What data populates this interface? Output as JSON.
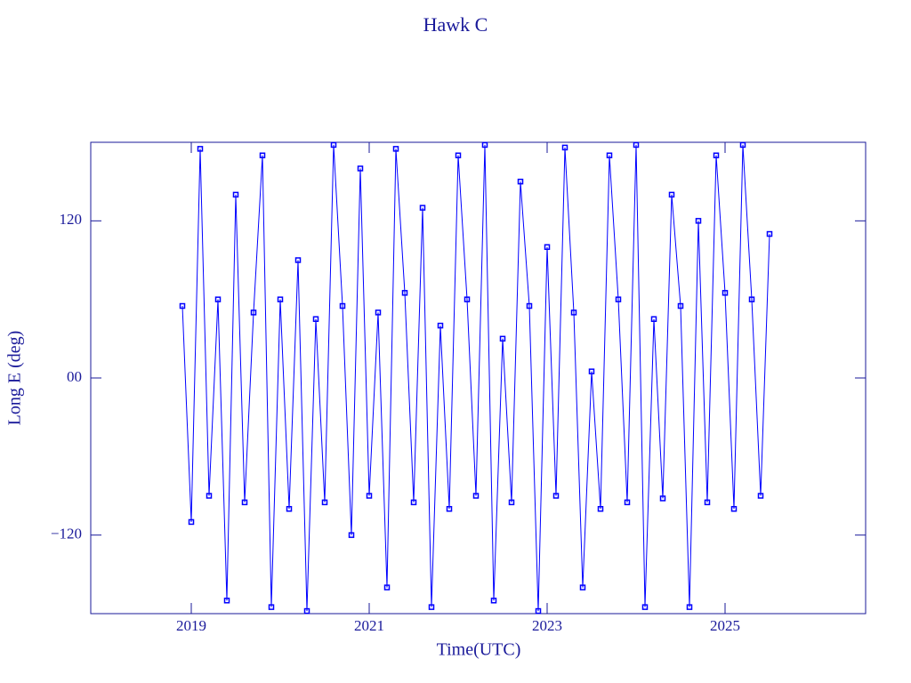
{
  "chart_data": {
    "type": "line",
    "title": "Hawk C",
    "xlabel": "Time(UTC)",
    "ylabel": "Long E (deg)",
    "x": [
      2018.9,
      2019.0,
      2019.1,
      2019.2,
      2019.3,
      2019.4,
      2019.5,
      2019.6,
      2019.7,
      2019.8,
      2019.9,
      2020.0,
      2020.1,
      2020.2,
      2020.3,
      2020.4,
      2020.5,
      2020.6,
      2020.7,
      2020.8,
      2020.9,
      2021.0,
      2021.1,
      2021.2,
      2021.3,
      2021.4,
      2021.5,
      2021.6,
      2021.7,
      2021.8,
      2021.9,
      2022.0,
      2022.1,
      2022.2,
      2022.3,
      2022.4,
      2022.5,
      2022.6,
      2022.7,
      2022.8,
      2022.9,
      2023.0,
      2023.1,
      2023.2,
      2023.3,
      2023.4,
      2023.5,
      2023.6,
      2023.7,
      2023.8,
      2023.9,
      2024.0,
      2024.1,
      2024.2,
      2024.3,
      2024.4,
      2024.5,
      2024.6,
      2024.7,
      2024.8,
      2024.9,
      2025.0,
      2025.1,
      2025.2,
      2025.3,
      2025.4,
      2025.5
    ],
    "series": [
      {
        "color": "#0000ff",
        "values": [
          55,
          -110,
          175,
          -90,
          60,
          -170,
          140,
          -95,
          50,
          170,
          -175,
          60,
          -100,
          90,
          -178,
          45,
          -95,
          178,
          55,
          -120,
          160,
          -90,
          50,
          -160,
          175,
          65,
          -95,
          130,
          -175,
          40,
          -100,
          170,
          60,
          -90,
          178,
          -170,
          30,
          -95,
          150,
          55,
          -178,
          100,
          -90,
          176,
          50,
          -160,
          5,
          -100,
          170,
          60,
          -95,
          178,
          -175,
          45,
          -92,
          140,
          55,
          -175,
          120,
          -95,
          170,
          65,
          -100,
          178,
          60,
          -90,
          110
        ]
      }
    ],
    "xlim": [
      2017.87,
      2026.58
    ],
    "xticks": [
      2019,
      2021,
      2023,
      2025
    ],
    "ylim": [
      -180,
      180
    ],
    "yticks": [
      {
        "value": -120,
        "label": "−120"
      },
      {
        "value": 0,
        "label": "00"
      },
      120
    ]
  }
}
